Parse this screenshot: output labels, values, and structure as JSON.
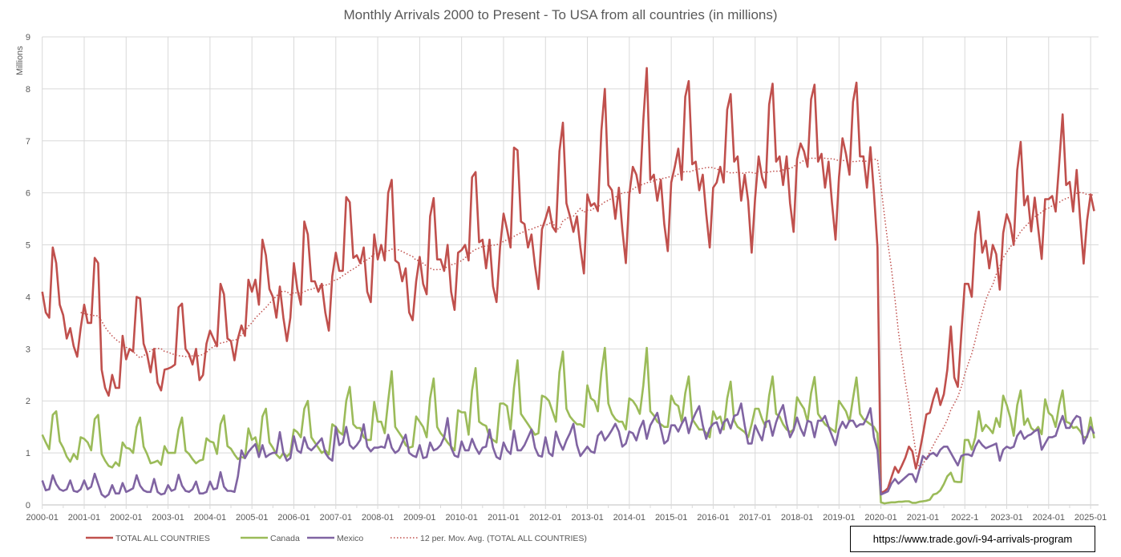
{
  "chart_data": {
    "type": "line",
    "title": "Monthly Arrivals 2000 to Present - To USA from all countries (in millions)",
    "ylabel": "Millions",
    "xlabel": "",
    "ylim": [
      0,
      9
    ],
    "y_ticks": [
      "0",
      "1",
      "2",
      "3",
      "4",
      "5",
      "6",
      "7",
      "8",
      "9"
    ],
    "x_tick_labels": [
      "2000-01",
      "2001-01",
      "2002-01",
      "2003-01",
      "2004-01",
      "2005-01",
      "2006-01",
      "2007-01",
      "2008-01",
      "2009-01",
      "2010-01",
      "2011-01",
      "2012-01",
      "2013-01",
      "2014-01",
      "2015-01",
      "2016-01",
      "2017-01",
      "2018-01",
      "2019-01",
      "2020-01",
      "2021-01",
      "2022-1",
      "2023-01",
      "2024-01",
      "2025-01"
    ],
    "grid": true,
    "legend_position": "bottom",
    "series": [
      {
        "name": "TOTAL ALL COUNTRIES",
        "color": "#c0504d",
        "style": "solid",
        "values": [
          4.1,
          3.7,
          3.6,
          4.95,
          4.65,
          3.85,
          3.65,
          3.2,
          3.4,
          3.05,
          2.85,
          3.4,
          3.85,
          3.5,
          3.5,
          4.75,
          4.65,
          2.6,
          2.25,
          2.1,
          2.5,
          2.25,
          2.25,
          3.25,
          2.8,
          3.0,
          2.95,
          4.0,
          3.97,
          3.1,
          2.9,
          2.55,
          3.0,
          2.35,
          2.2,
          2.6,
          2.62,
          2.65,
          2.7,
          3.8,
          3.87,
          3.0,
          2.9,
          2.7,
          3.0,
          2.4,
          2.5,
          3.1,
          3.35,
          3.2,
          3.05,
          4.25,
          4.05,
          3.2,
          3.15,
          2.78,
          3.2,
          3.45,
          3.25,
          4.33,
          4.1,
          4.33,
          3.85,
          5.1,
          4.8,
          4.15,
          4.0,
          3.6,
          4.2,
          3.6,
          3.15,
          3.6,
          4.65,
          4.15,
          3.85,
          5.45,
          5.2,
          4.3,
          4.3,
          4.1,
          4.25,
          3.7,
          3.35,
          4.4,
          4.85,
          4.5,
          4.5,
          5.92,
          5.82,
          4.75,
          4.8,
          4.65,
          4.95,
          4.1,
          3.9,
          5.2,
          4.72,
          5.0,
          4.7,
          6.0,
          6.25,
          4.7,
          4.65,
          4.3,
          4.55,
          3.7,
          3.55,
          4.3,
          4.77,
          4.25,
          4.05,
          5.55,
          5.9,
          4.72,
          4.72,
          4.5,
          5.0,
          4.1,
          3.75,
          4.85,
          4.9,
          5.0,
          4.7,
          6.3,
          6.4,
          5.05,
          5.1,
          4.55,
          5.1,
          4.2,
          3.9,
          4.95,
          5.6,
          5.3,
          4.95,
          6.87,
          6.82,
          5.45,
          5.4,
          4.95,
          5.2,
          4.6,
          4.15,
          5.3,
          5.5,
          5.73,
          5.35,
          5.25,
          6.8,
          7.35,
          5.8,
          5.55,
          5.25,
          5.55,
          4.95,
          4.45,
          5.97,
          5.75,
          5.8,
          5.65,
          7.2,
          8.0,
          6.15,
          6.05,
          5.5,
          6.1,
          5.3,
          4.65,
          5.97,
          6.5,
          6.35,
          6.0,
          7.4,
          8.4,
          6.25,
          6.35,
          5.85,
          6.25,
          5.4,
          4.88,
          6.2,
          6.5,
          6.85,
          6.25,
          7.85,
          8.15,
          6.55,
          6.6,
          6.05,
          6.35,
          5.6,
          4.95,
          6.1,
          6.2,
          6.5,
          6.2,
          7.6,
          7.9,
          6.6,
          6.7,
          5.85,
          6.35,
          5.85,
          4.85,
          5.9,
          6.7,
          6.3,
          6.1,
          7.7,
          8.1,
          6.6,
          6.7,
          6.15,
          6.7,
          5.8,
          5.25,
          6.65,
          6.95,
          6.8,
          6.5,
          7.8,
          8.08,
          6.6,
          6.75,
          6.1,
          6.6,
          5.8,
          5.1,
          6.3,
          7.05,
          6.75,
          6.35,
          7.75,
          8.12,
          6.7,
          6.7,
          6.1,
          6.88,
          6.0,
          4.95,
          0.23,
          0.26,
          0.32,
          0.53,
          0.73,
          0.62,
          0.76,
          0.91,
          1.12,
          1.03,
          0.7,
          1.0,
          1.35,
          1.74,
          1.77,
          2.04,
          2.24,
          1.92,
          2.13,
          2.6,
          3.43,
          2.45,
          2.27,
          3.3,
          4.25,
          4.25,
          4.0,
          5.2,
          5.64,
          4.85,
          5.08,
          4.55,
          5.0,
          4.82,
          4.14,
          5.23,
          5.59,
          5.4,
          5.0,
          6.44,
          6.98,
          5.76,
          5.94,
          5.26,
          5.91,
          5.32,
          4.73,
          5.88,
          5.88,
          5.94,
          5.64,
          6.56,
          7.51,
          6.15,
          6.21,
          5.64,
          6.44,
          5.5,
          4.64,
          5.47,
          5.97,
          5.65
        ]
      },
      {
        "name": "Canada",
        "color": "#9bbb59",
        "style": "solid",
        "values": [
          1.35,
          1.2,
          1.07,
          1.73,
          1.8,
          1.22,
          1.1,
          0.93,
          0.83,
          0.98,
          0.88,
          1.3,
          1.27,
          1.2,
          1.05,
          1.65,
          1.73,
          0.98,
          0.85,
          0.75,
          0.72,
          0.82,
          0.75,
          1.2,
          1.1,
          1.08,
          1.0,
          1.5,
          1.68,
          1.12,
          0.98,
          0.8,
          0.82,
          0.85,
          0.77,
          1.13,
          1.0,
          1.0,
          1.0,
          1.45,
          1.68,
          1.04,
          0.98,
          0.88,
          0.8,
          0.85,
          0.87,
          1.28,
          1.22,
          1.2,
          0.98,
          1.55,
          1.72,
          1.13,
          1.08,
          0.97,
          0.88,
          0.92,
          0.9,
          1.47,
          1.25,
          1.3,
          1.02,
          1.7,
          1.85,
          1.2,
          1.1,
          0.97,
          0.9,
          1.0,
          0.93,
          1.0,
          1.45,
          1.4,
          1.3,
          1.85,
          2.0,
          1.3,
          1.2,
          1.1,
          1.0,
          1.05,
          0.97,
          1.55,
          1.5,
          1.4,
          1.35,
          2.0,
          2.27,
          1.55,
          1.48,
          1.48,
          1.3,
          1.25,
          1.25,
          1.98,
          1.6,
          1.6,
          1.38,
          2.0,
          2.57,
          1.5,
          1.4,
          1.3,
          1.15,
          1.1,
          1.12,
          1.7,
          1.6,
          1.5,
          1.3,
          2.05,
          2.43,
          1.5,
          1.38,
          1.3,
          1.2,
          1.12,
          1.05,
          1.82,
          1.78,
          1.78,
          1.35,
          2.2,
          2.63,
          1.6,
          1.55,
          1.52,
          1.3,
          1.25,
          1.2,
          1.95,
          1.95,
          1.9,
          1.45,
          2.25,
          2.78,
          1.75,
          1.65,
          1.55,
          1.45,
          1.35,
          1.38,
          2.1,
          2.07,
          2.0,
          1.8,
          1.6,
          2.55,
          2.95,
          1.85,
          1.7,
          1.62,
          1.55,
          1.55,
          1.5,
          2.3,
          2.05,
          2.0,
          1.8,
          2.55,
          3.02,
          1.95,
          1.75,
          1.65,
          1.6,
          1.6,
          1.45,
          2.05,
          2.0,
          1.9,
          1.75,
          2.3,
          3.02,
          1.8,
          1.72,
          1.6,
          1.55,
          1.5,
          1.5,
          2.1,
          1.95,
          1.9,
          1.6,
          2.15,
          2.47,
          1.65,
          1.55,
          1.45,
          1.45,
          1.38,
          1.3,
          1.8,
          1.65,
          1.7,
          1.45,
          2.05,
          2.37,
          1.62,
          1.5,
          1.45,
          1.4,
          1.3,
          1.55,
          1.85,
          1.85,
          1.65,
          1.5,
          2.1,
          2.47,
          1.75,
          1.7,
          1.55,
          1.45,
          1.4,
          1.45,
          2.07,
          1.95,
          1.85,
          1.6,
          2.15,
          2.46,
          1.75,
          1.65,
          1.55,
          1.5,
          1.45,
          1.4,
          2.0,
          1.9,
          1.8,
          1.6,
          2.05,
          2.45,
          1.75,
          1.65,
          1.6,
          1.55,
          1.5,
          1.38,
          0.05,
          0.03,
          0.04,
          0.05,
          0.05,
          0.06,
          0.06,
          0.07,
          0.07,
          0.04,
          0.04,
          0.06,
          0.07,
          0.08,
          0.1,
          0.2,
          0.22,
          0.28,
          0.4,
          0.55,
          0.62,
          0.45,
          0.44,
          0.44,
          1.25,
          1.25,
          1.06,
          1.3,
          1.8,
          1.42,
          1.54,
          1.47,
          1.38,
          1.67,
          1.5,
          2.1,
          1.92,
          1.68,
          1.33,
          1.92,
          2.2,
          1.54,
          1.66,
          1.48,
          1.42,
          1.5,
          1.36,
          2.03,
          1.77,
          1.71,
          1.5,
          1.92,
          2.2,
          1.6,
          1.57,
          1.48,
          1.5,
          1.42,
          1.3,
          1.3,
          1.68,
          1.28
        ]
      },
      {
        "name": "Mexico",
        "color": "#8064a2",
        "style": "solid",
        "values": [
          0.47,
          0.28,
          0.3,
          0.57,
          0.4,
          0.3,
          0.27,
          0.3,
          0.47,
          0.27,
          0.25,
          0.3,
          0.47,
          0.3,
          0.35,
          0.6,
          0.4,
          0.2,
          0.15,
          0.2,
          0.38,
          0.22,
          0.22,
          0.42,
          0.25,
          0.28,
          0.32,
          0.57,
          0.37,
          0.28,
          0.25,
          0.25,
          0.5,
          0.25,
          0.2,
          0.22,
          0.38,
          0.27,
          0.3,
          0.58,
          0.37,
          0.27,
          0.25,
          0.3,
          0.45,
          0.22,
          0.22,
          0.25,
          0.45,
          0.3,
          0.32,
          0.63,
          0.35,
          0.27,
          0.27,
          0.25,
          0.55,
          1.05,
          0.9,
          1.02,
          1.1,
          1.17,
          0.92,
          1.15,
          0.92,
          0.97,
          1.0,
          1.0,
          1.4,
          1.0,
          0.85,
          0.9,
          1.32,
          1.05,
          1.0,
          1.3,
          1.1,
          1.05,
          1.12,
          1.2,
          1.28,
          1.0,
          0.9,
          0.85,
          1.5,
          1.15,
          1.2,
          1.5,
          1.15,
          1.08,
          1.15,
          1.25,
          1.55,
          1.12,
          1.03,
          1.1,
          1.1,
          1.12,
          1.1,
          1.35,
          1.1,
          1.0,
          1.05,
          1.2,
          1.35,
          1.0,
          0.95,
          0.92,
          1.15,
          0.9,
          0.92,
          1.2,
          1.05,
          1.08,
          1.15,
          1.3,
          1.67,
          1.1,
          0.95,
          0.92,
          1.22,
          1.05,
          1.05,
          1.27,
          1.1,
          0.98,
          1.1,
          1.12,
          1.45,
          1.1,
          0.92,
          0.88,
          1.2,
          1.05,
          0.98,
          1.43,
          1.05,
          1.05,
          1.15,
          1.3,
          1.45,
          1.1,
          0.95,
          0.93,
          1.3,
          1.0,
          0.94,
          1.41,
          1.2,
          1.06,
          1.24,
          1.38,
          1.56,
          1.15,
          0.94,
          1.03,
          1.12,
          1.03,
          1.0,
          1.33,
          1.41,
          1.24,
          1.33,
          1.44,
          1.56,
          1.41,
          1.12,
          1.18,
          1.41,
          1.38,
          1.24,
          1.47,
          1.62,
          1.27,
          1.53,
          1.65,
          1.77,
          1.47,
          1.18,
          1.24,
          1.53,
          1.53,
          1.41,
          1.56,
          1.68,
          1.38,
          1.62,
          1.77,
          1.9,
          1.53,
          1.27,
          1.47,
          1.56,
          1.59,
          1.38,
          1.59,
          1.65,
          1.47,
          1.71,
          1.74,
          1.95,
          1.53,
          1.18,
          1.18,
          1.53,
          1.38,
          1.24,
          1.59,
          1.62,
          1.33,
          1.59,
          1.77,
          1.92,
          1.56,
          1.3,
          1.44,
          1.68,
          1.47,
          1.33,
          1.62,
          1.59,
          1.3,
          1.62,
          1.62,
          1.71,
          1.5,
          1.33,
          1.15,
          1.45,
          1.6,
          1.48,
          1.62,
          1.62,
          1.5,
          1.55,
          1.55,
          1.68,
          1.86,
          1.3,
          1.05,
          0.2,
          0.23,
          0.26,
          0.41,
          0.5,
          0.41,
          0.47,
          0.53,
          0.59,
          0.59,
          0.44,
          0.68,
          0.94,
          0.88,
          0.97,
          1.0,
          0.94,
          1.06,
          1.12,
          1.12,
          1.0,
          0.88,
          0.76,
          0.94,
          0.97,
          0.97,
          0.94,
          1.12,
          1.24,
          1.15,
          1.09,
          1.12,
          1.15,
          1.18,
          0.85,
          1.06,
          1.12,
          1.09,
          1.12,
          1.33,
          1.42,
          1.27,
          1.33,
          1.36,
          1.42,
          1.45,
          1.06,
          1.18,
          1.3,
          1.3,
          1.33,
          1.54,
          1.71,
          1.48,
          1.48,
          1.62,
          1.71,
          1.68,
          1.18,
          1.33,
          1.5,
          1.37
        ]
      }
    ],
    "trendline": {
      "name": "12 per. Mov. Avg. (TOTAL ALL COUNTRIES)",
      "period": 12,
      "of": "TOTAL ALL COUNTRIES",
      "color": "#c0504d",
      "style": "dotted"
    }
  },
  "source_box": {
    "text": "https://www.trade.gov/i-94-arrivals-program"
  }
}
